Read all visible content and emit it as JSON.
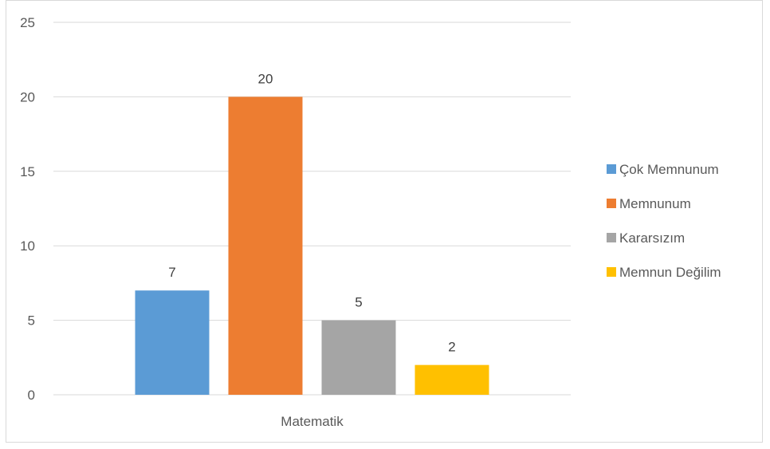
{
  "chart_data": {
    "type": "bar",
    "title": "",
    "xlabel": "",
    "ylabel": "",
    "categories": [
      "Matematik"
    ],
    "ylim": [
      0,
      25
    ],
    "yticks": [
      0,
      5,
      10,
      15,
      20,
      25
    ],
    "grid": true,
    "legend_position": "right",
    "series": [
      {
        "name": "Çok Memnunum",
        "values": [
          7
        ],
        "color": "#5b9bd5"
      },
      {
        "name": "Memnunum",
        "values": [
          20
        ],
        "color": "#ed7d31"
      },
      {
        "name": "Kararsızım",
        "values": [
          5
        ],
        "color": "#a5a5a5"
      },
      {
        "name": "Memnun Değilim",
        "values": [
          2
        ],
        "color": "#ffc000"
      }
    ],
    "data_labels": true
  }
}
